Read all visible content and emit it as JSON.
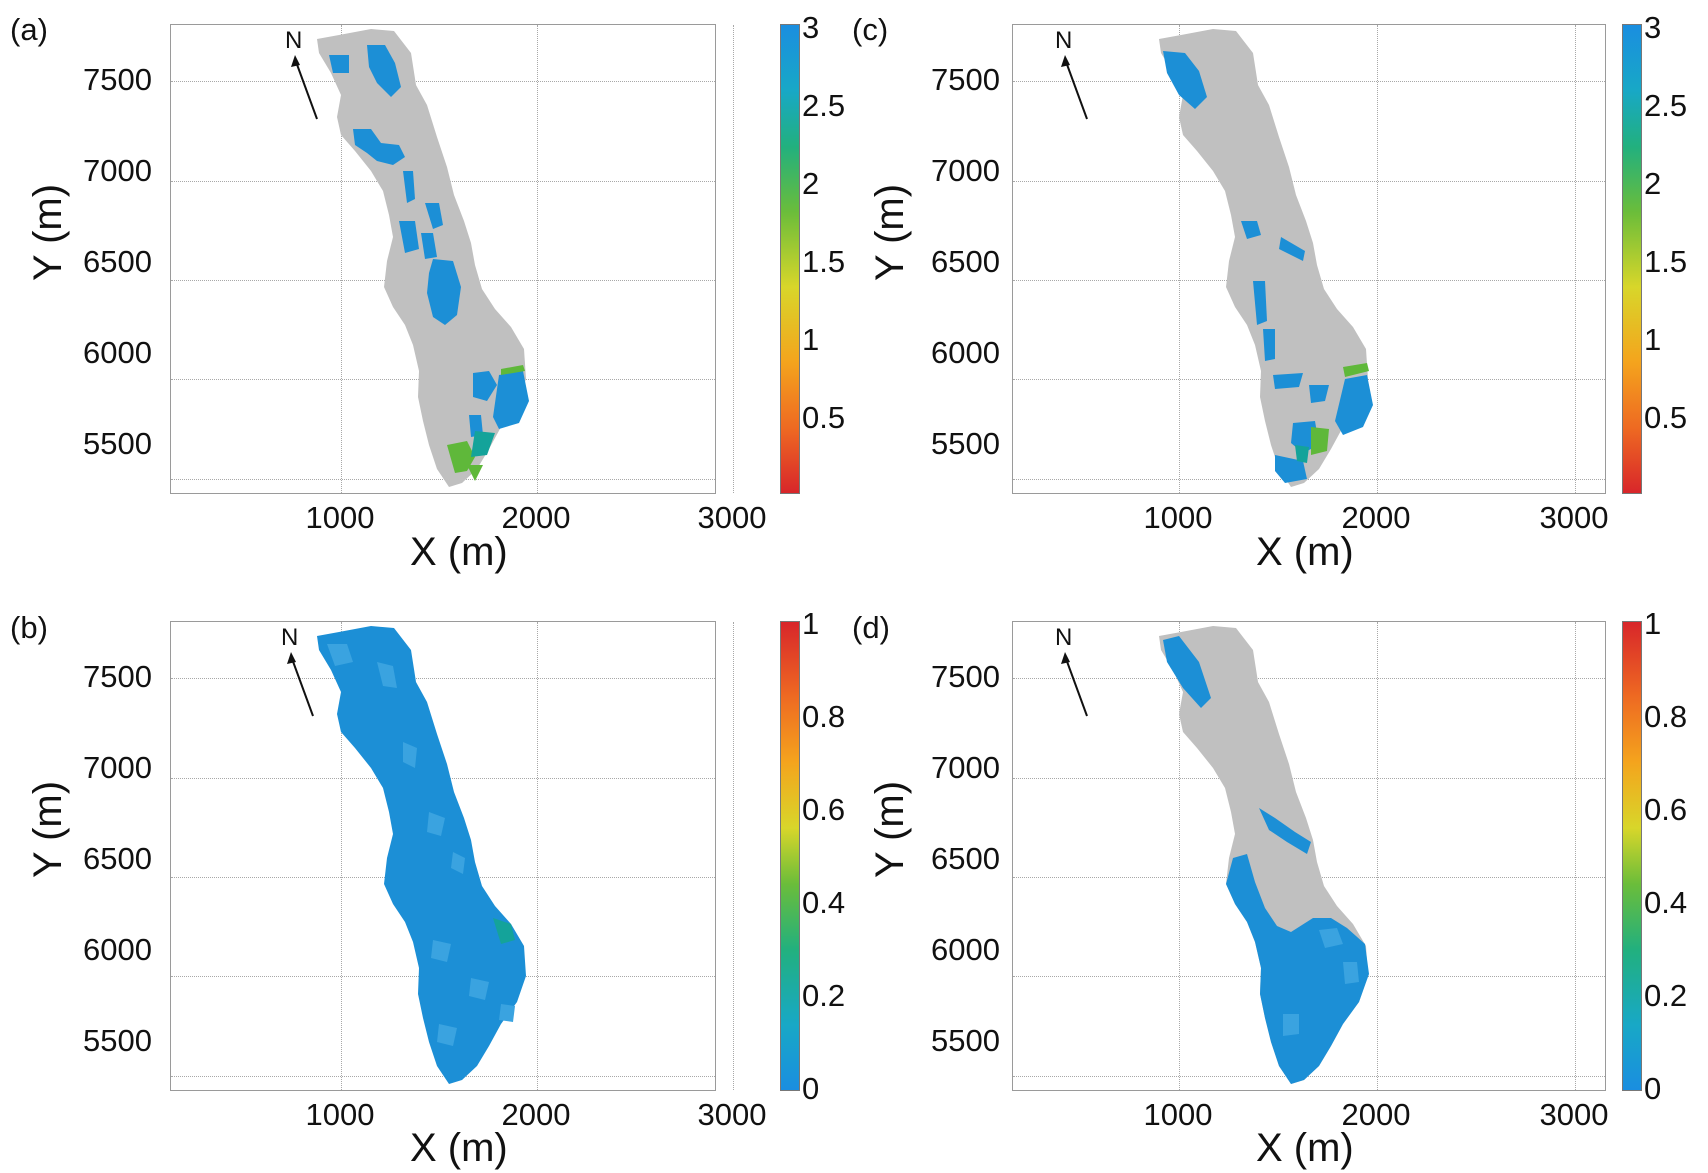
{
  "colors": {
    "land": "#c0c0c0",
    "blue": "#1c8fd6",
    "light_blue": "#3aa3e0",
    "teal": "#14a39a",
    "green": "#5fb83a",
    "grid": "#a8a8a8"
  },
  "colormap": [
    "#1a8ee0",
    "#18a8c6",
    "#22b07e",
    "#6bbd3a",
    "#d8d62a",
    "#f4a41d",
    "#ee6a22",
    "#d8262a"
  ],
  "panels": [
    {
      "id": "a",
      "label": "(a)",
      "xlabel": "X (m)",
      "ylabel": "Y (m)",
      "xticks": [
        "1000",
        "2000",
        "3000"
      ],
      "yticks": [
        "7500",
        "7000",
        "6500",
        "6000",
        "5500"
      ],
      "colorbar_ticks": [
        "3",
        "2.5",
        "2",
        "1.5",
        "1",
        "0.5"
      ],
      "colorbar_range": [
        0,
        3
      ],
      "north": "N",
      "fill": "land"
    },
    {
      "id": "b",
      "label": "(b)",
      "xlabel": "X (m)",
      "ylabel": "Y (m)",
      "xticks": [
        "1000",
        "2000",
        "3000"
      ],
      "yticks": [
        "7500",
        "7000",
        "6500",
        "6000",
        "5500"
      ],
      "colorbar_ticks": [
        "1",
        "0.8",
        "0.6",
        "0.4",
        "0.2",
        "0"
      ],
      "colorbar_range": [
        0,
        1
      ],
      "north": "N",
      "fill": "blue"
    },
    {
      "id": "c",
      "label": "(c)",
      "xlabel": "X (m)",
      "ylabel": "Y (m)",
      "xticks": [
        "1000",
        "2000",
        "3000"
      ],
      "yticks": [
        "7500",
        "7000",
        "6500",
        "6000",
        "5500"
      ],
      "colorbar_ticks": [
        "3",
        "2.5",
        "2",
        "1.5",
        "1",
        "0.5"
      ],
      "colorbar_range": [
        0,
        3
      ],
      "north": "N",
      "fill": "land"
    },
    {
      "id": "d",
      "label": "(d)",
      "xlabel": "X (m)",
      "ylabel": "Y (m)",
      "xticks": [
        "1000",
        "2000",
        "3000"
      ],
      "yticks": [
        "7500",
        "7000",
        "6500",
        "6000",
        "5500"
      ],
      "colorbar_ticks": [
        "1",
        "0.8",
        "0.6",
        "0.4",
        "0.2",
        "0"
      ],
      "colorbar_range": [
        0,
        1
      ],
      "north": "N",
      "fill": "land"
    }
  ]
}
